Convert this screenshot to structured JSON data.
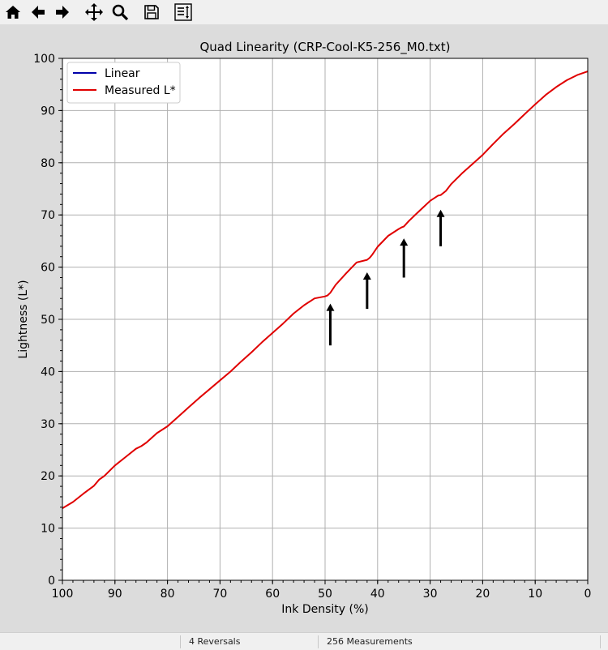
{
  "toolbar": {
    "tools": [
      {
        "name": "home-icon",
        "label": "Home"
      },
      {
        "name": "back-icon",
        "label": "Back"
      },
      {
        "name": "forward-icon",
        "label": "Forward"
      },
      {
        "name": "pan-icon",
        "label": "Pan"
      },
      {
        "name": "zoom-icon",
        "label": "Zoom"
      },
      {
        "name": "save-icon",
        "label": "Save"
      },
      {
        "name": "configure-subplots-icon",
        "label": "Configure"
      }
    ]
  },
  "status": {
    "reversals": "4 Reversals",
    "measurements": "256 Measurements"
  },
  "colors": {
    "linear": "#0000aa",
    "measured": "#e00000",
    "figure_bg": "#dcdcdc",
    "axes_bg": "#ffffff",
    "grid": "#b0b0b0"
  },
  "chart_data": {
    "type": "line",
    "title": "Quad Linearity  (CRP-Cool-K5-256_M0.txt)",
    "xlabel": "Ink Density (%)",
    "ylabel": "Lightness (L*)",
    "xlim": [
      100,
      0
    ],
    "ylim": [
      0,
      100
    ],
    "x_inverted": true,
    "grid": true,
    "legend_position": "top-left",
    "xticks": [
      "100",
      "90",
      "80",
      "70",
      "60",
      "50",
      "40",
      "30",
      "20",
      "10",
      "0"
    ],
    "yticks": [
      "0",
      "10",
      "20",
      "30",
      "40",
      "50",
      "60",
      "70",
      "80",
      "90",
      "100"
    ],
    "series": [
      {
        "name": "Linear",
        "color": "#0000aa",
        "x": [],
        "y": []
      },
      {
        "name": "Measured L*",
        "color": "#e00000",
        "x": [
          100,
          98,
          96,
          94,
          93,
          92,
          90,
          88,
          86,
          85,
          84,
          82,
          80,
          78,
          76,
          74,
          72,
          70,
          68,
          66,
          64,
          62,
          60,
          58,
          56,
          54,
          52,
          50,
          49.5,
          49,
          48,
          46,
          44,
          42,
          41.5,
          41,
          40,
          38,
          36,
          35.5,
          35,
          34,
          32,
          30,
          28.5,
          28,
          27,
          26,
          24,
          22,
          20,
          18,
          16,
          14,
          12,
          10,
          8,
          6,
          4,
          2,
          0
        ],
        "y": [
          13.8,
          15.0,
          16.6,
          18.1,
          19.3,
          20.0,
          22.0,
          23.6,
          25.2,
          25.7,
          26.4,
          28.2,
          29.5,
          31.3,
          33.1,
          34.9,
          36.6,
          38.3,
          40.0,
          41.9,
          43.7,
          45.6,
          47.4,
          49.2,
          51.1,
          52.7,
          54.0,
          54.4,
          54.6,
          55.1,
          56.6,
          58.8,
          60.9,
          61.4,
          61.8,
          62.4,
          63.9,
          66.0,
          67.3,
          67.6,
          67.8,
          68.9,
          70.8,
          72.7,
          73.7,
          73.8,
          74.6,
          75.9,
          77.9,
          79.7,
          81.5,
          83.6,
          85.6,
          87.4,
          89.3,
          91.2,
          93.0,
          94.5,
          95.8,
          96.8,
          97.5
        ]
      }
    ],
    "annotations": [
      {
        "type": "arrow",
        "x": 49,
        "y_start": 45,
        "y_end": 53
      },
      {
        "type": "arrow",
        "x": 42,
        "y_start": 52,
        "y_end": 59
      },
      {
        "type": "arrow",
        "x": 35,
        "y_start": 58,
        "y_end": 65.5
      },
      {
        "type": "arrow",
        "x": 28,
        "y_start": 64,
        "y_end": 71
      }
    ]
  }
}
